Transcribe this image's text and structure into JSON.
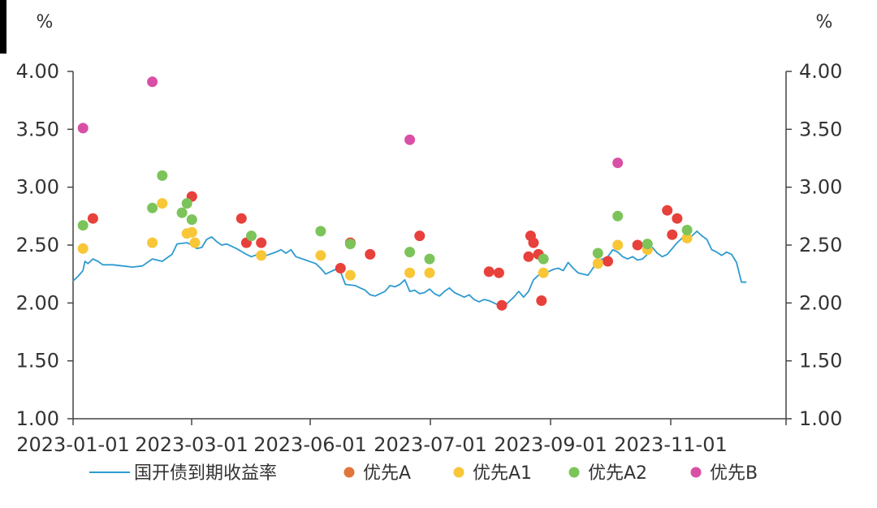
{
  "chart_data": {
    "type": "scatter",
    "title": "",
    "y_unit_left": "%",
    "y_unit_right": "%",
    "ylim": [
      1.0,
      4.0
    ],
    "y_ticks": [
      "1.00",
      "1.50",
      "2.00",
      "2.50",
      "3.00",
      "3.50",
      "4.00"
    ],
    "x_tick_labels": [
      "2023-01-01",
      "2023-03-01",
      "2023-06-01",
      "2023-07-01",
      "2023-09-01",
      "2023-11-01"
    ],
    "legend_position": "bottom",
    "grid": false,
    "line_series": {
      "name": "国开债到期收益率",
      "color": "#2e9bcf",
      "points": [
        [
          0.0,
          2.19
        ],
        [
          0.5,
          2.23
        ],
        [
          1.0,
          2.28
        ],
        [
          1.2,
          2.36
        ],
        [
          1.5,
          2.34
        ],
        [
          2.0,
          2.38
        ],
        [
          2.5,
          2.36
        ],
        [
          3.0,
          2.33
        ],
        [
          4.0,
          2.33
        ],
        [
          5.0,
          2.32
        ],
        [
          6.0,
          2.31
        ],
        [
          7.0,
          2.32
        ],
        [
          8.0,
          2.38
        ],
        [
          9.0,
          2.36
        ],
        [
          10.0,
          2.42
        ],
        [
          10.5,
          2.51
        ],
        [
          11.5,
          2.52
        ],
        [
          12.0,
          2.5
        ],
        [
          12.5,
          2.47
        ],
        [
          13.0,
          2.48
        ],
        [
          13.5,
          2.55
        ],
        [
          14.0,
          2.57
        ],
        [
          14.5,
          2.53
        ],
        [
          15.0,
          2.5
        ],
        [
          15.5,
          2.51
        ],
        [
          16.5,
          2.47
        ],
        [
          17.5,
          2.42
        ],
        [
          18.0,
          2.4
        ],
        [
          19.0,
          2.43
        ],
        [
          19.5,
          2.41
        ],
        [
          20.5,
          2.44
        ],
        [
          21.0,
          2.46
        ],
        [
          21.5,
          2.43
        ],
        [
          22.0,
          2.46
        ],
        [
          22.5,
          2.4
        ],
        [
          23.5,
          2.37
        ],
        [
          24.5,
          2.34
        ],
        [
          25.0,
          2.3
        ],
        [
          25.5,
          2.25
        ],
        [
          26.0,
          2.27
        ],
        [
          26.5,
          2.29
        ],
        [
          27.0,
          2.27
        ],
        [
          27.5,
          2.16
        ],
        [
          28.5,
          2.15
        ],
        [
          29.0,
          2.13
        ],
        [
          29.5,
          2.11
        ],
        [
          30.0,
          2.07
        ],
        [
          30.5,
          2.06
        ],
        [
          31.5,
          2.1
        ],
        [
          32.0,
          2.15
        ],
        [
          32.5,
          2.14
        ],
        [
          33.0,
          2.16
        ],
        [
          33.5,
          2.2
        ],
        [
          34.0,
          2.1
        ],
        [
          34.5,
          2.11
        ],
        [
          35.0,
          2.08
        ],
        [
          35.5,
          2.09
        ],
        [
          36.0,
          2.12
        ],
        [
          36.5,
          2.08
        ],
        [
          37.0,
          2.06
        ],
        [
          37.5,
          2.1
        ],
        [
          38.0,
          2.13
        ],
        [
          38.5,
          2.09
        ],
        [
          39.0,
          2.07
        ],
        [
          39.5,
          2.05
        ],
        [
          40.0,
          2.07
        ],
        [
          40.5,
          2.03
        ],
        [
          41.0,
          2.01
        ],
        [
          41.5,
          2.03
        ],
        [
          42.0,
          2.02
        ],
        [
          42.5,
          2.0
        ],
        [
          43.0,
          1.98
        ],
        [
          43.5,
          1.97
        ],
        [
          44.0,
          2.01
        ],
        [
          44.5,
          2.05
        ],
        [
          45.0,
          2.1
        ],
        [
          45.5,
          2.05
        ],
        [
          46.0,
          2.1
        ],
        [
          46.5,
          2.2
        ],
        [
          47.0,
          2.24
        ],
        [
          47.5,
          2.25
        ],
        [
          48.0,
          2.27
        ],
        [
          48.5,
          2.29
        ],
        [
          49.0,
          2.3
        ],
        [
          49.5,
          2.28
        ],
        [
          50.0,
          2.35
        ],
        [
          50.5,
          2.3
        ],
        [
          51.0,
          2.26
        ],
        [
          51.5,
          2.25
        ],
        [
          52.0,
          2.24
        ],
        [
          52.5,
          2.3
        ],
        [
          53.0,
          2.37
        ],
        [
          53.5,
          2.38
        ],
        [
          54.0,
          2.4
        ],
        [
          54.5,
          2.46
        ],
        [
          55.0,
          2.44
        ],
        [
          55.5,
          2.4
        ],
        [
          56.0,
          2.38
        ],
        [
          56.5,
          2.4
        ],
        [
          57.0,
          2.37
        ],
        [
          57.5,
          2.38
        ],
        [
          58.0,
          2.42
        ],
        [
          58.5,
          2.48
        ],
        [
          59.0,
          2.43
        ],
        [
          59.5,
          2.4
        ],
        [
          60.0,
          2.42
        ],
        [
          60.5,
          2.47
        ],
        [
          61.0,
          2.52
        ],
        [
          61.5,
          2.56
        ],
        [
          62.0,
          2.53
        ],
        [
          62.5,
          2.58
        ],
        [
          63.0,
          2.62
        ],
        [
          63.5,
          2.58
        ],
        [
          64.0,
          2.55
        ],
        [
          64.5,
          2.46
        ],
        [
          65.0,
          2.44
        ],
        [
          65.5,
          2.41
        ],
        [
          66.0,
          2.44
        ],
        [
          66.5,
          2.42
        ],
        [
          67.0,
          2.35
        ],
        [
          67.5,
          2.18
        ],
        [
          68.0,
          2.18
        ]
      ]
    },
    "scatter_series": [
      {
        "name": "优先A",
        "color": "#e8403b",
        "points": [
          [
            2.0,
            2.73
          ],
          [
            12.0,
            2.92
          ],
          [
            17.0,
            2.73
          ],
          [
            17.5,
            2.52
          ],
          [
            19.0,
            2.52
          ],
          [
            27.0,
            2.3
          ],
          [
            28.0,
            2.52
          ],
          [
            30.0,
            2.42
          ],
          [
            35.0,
            2.58
          ],
          [
            42.0,
            2.27
          ],
          [
            43.0,
            2.26
          ],
          [
            43.3,
            1.98
          ],
          [
            46.0,
            2.4
          ],
          [
            46.2,
            2.58
          ],
          [
            46.5,
            2.52
          ],
          [
            47.0,
            2.42
          ],
          [
            47.3,
            2.02
          ],
          [
            54.0,
            2.36
          ],
          [
            57.0,
            2.5
          ],
          [
            60.0,
            2.8
          ],
          [
            60.5,
            2.59
          ],
          [
            61.0,
            2.73
          ]
        ]
      },
      {
        "name": "优先A1",
        "color": "#f8c637",
        "points": [
          [
            1.0,
            2.47
          ],
          [
            8.0,
            2.52
          ],
          [
            9.0,
            2.86
          ],
          [
            11.5,
            2.6
          ],
          [
            12.0,
            2.61
          ],
          [
            12.3,
            2.52
          ],
          [
            19.0,
            2.41
          ],
          [
            25.0,
            2.41
          ],
          [
            28.0,
            2.24
          ],
          [
            34.0,
            2.26
          ],
          [
            36.0,
            2.26
          ],
          [
            47.5,
            2.26
          ],
          [
            53.0,
            2.34
          ],
          [
            55.0,
            2.5
          ],
          [
            58.0,
            2.46
          ],
          [
            62.0,
            2.56
          ]
        ]
      },
      {
        "name": "优先A2",
        "color": "#7cc45a",
        "points": [
          [
            1.0,
            2.67
          ],
          [
            8.0,
            2.82
          ],
          [
            9.0,
            3.1
          ],
          [
            11.0,
            2.78
          ],
          [
            11.5,
            2.86
          ],
          [
            12.0,
            2.72
          ],
          [
            18.0,
            2.58
          ],
          [
            25.0,
            2.62
          ],
          [
            28.0,
            2.51
          ],
          [
            34.0,
            2.44
          ],
          [
            36.0,
            2.38
          ],
          [
            47.5,
            2.38
          ],
          [
            53.0,
            2.43
          ],
          [
            55.0,
            2.75
          ],
          [
            58.0,
            2.51
          ],
          [
            62.0,
            2.63
          ]
        ]
      },
      {
        "name": "优先B",
        "color": "#d94fa6",
        "points": [
          [
            1.0,
            3.51
          ],
          [
            8.0,
            3.91
          ],
          [
            34.0,
            3.41
          ],
          [
            55.0,
            3.21
          ]
        ]
      }
    ]
  }
}
